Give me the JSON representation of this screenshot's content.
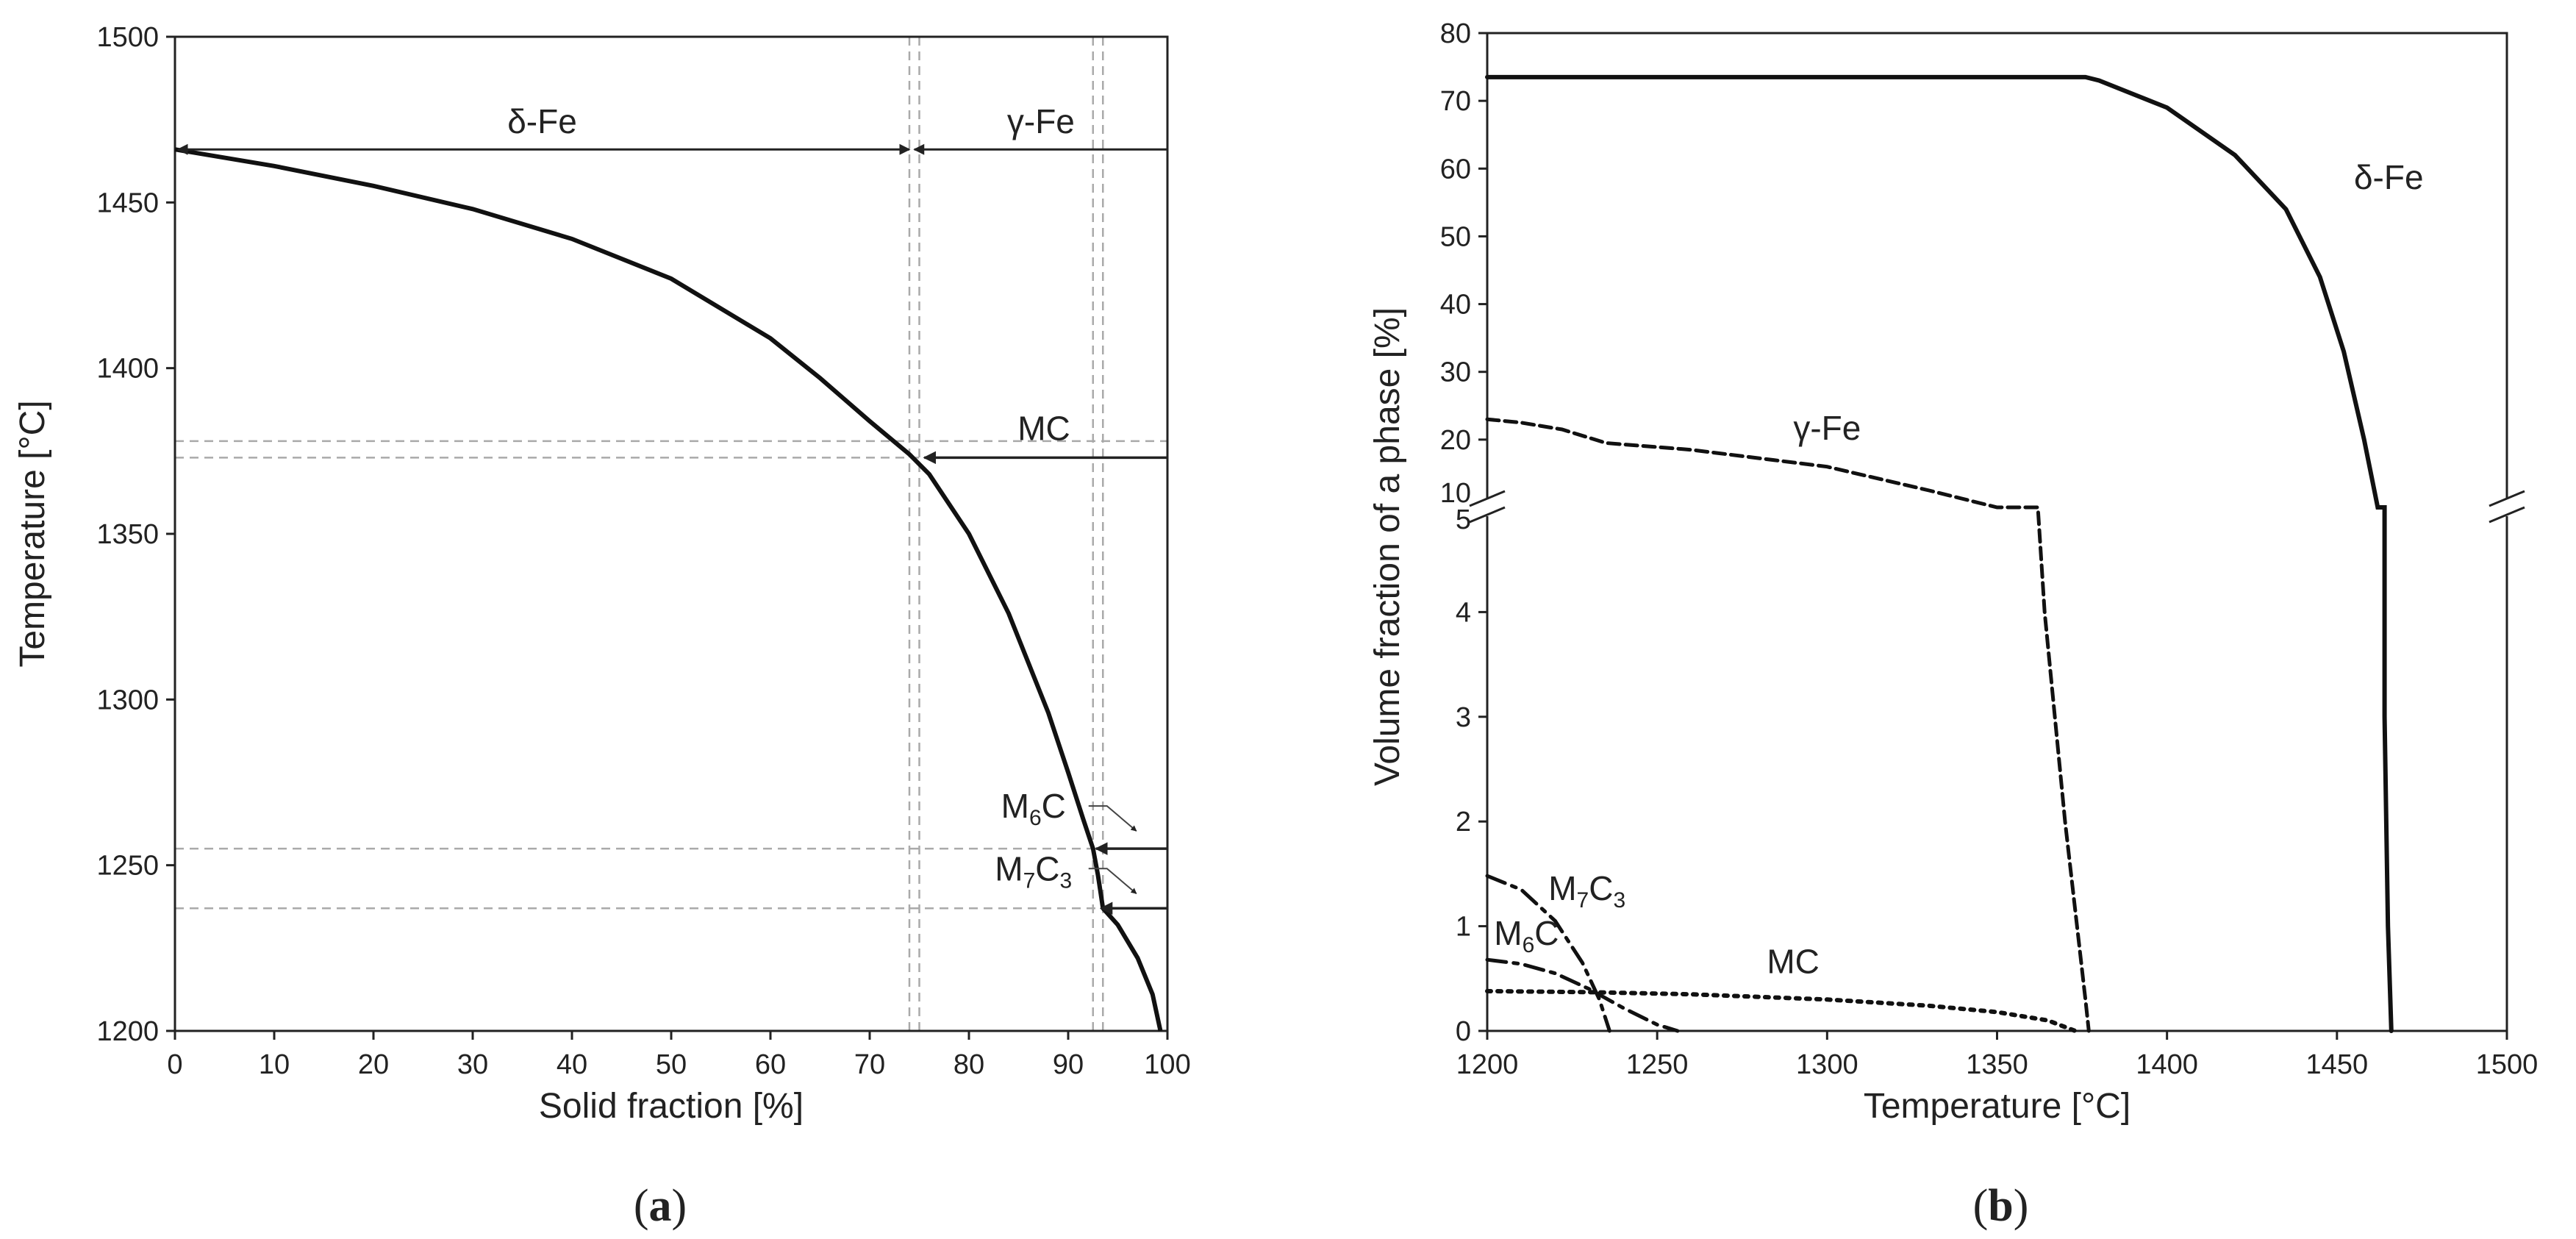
{
  "chart_data": [
    {
      "type": "line",
      "title": "",
      "panel_label": "(a)",
      "panel_label_parts": [
        "(",
        "a",
        ")"
      ],
      "xlabel": "Solid fraction [%]",
      "ylabel": "Temperature [°C]",
      "xlim": [
        0,
        100
      ],
      "ylim": [
        1200,
        1500
      ],
      "xticks": [
        0,
        10,
        20,
        30,
        40,
        50,
        60,
        70,
        80,
        90,
        100
      ],
      "yticks": [
        1200,
        1250,
        1300,
        1350,
        1400,
        1450,
        1500
      ],
      "curve": {
        "name": "solidification curve",
        "x": [
          0,
          10,
          20,
          30,
          40,
          50,
          60,
          65,
          70,
          74,
          76,
          80,
          84,
          88,
          90,
          91.5,
          92.5,
          93,
          93.5,
          95,
          97,
          98.5,
          99.3
        ],
        "y": [
          1466,
          1461,
          1455,
          1448,
          1439,
          1427,
          1409,
          1397,
          1384,
          1374,
          1368,
          1350,
          1326,
          1296,
          1278,
          1264,
          1255,
          1247,
          1237,
          1232,
          1222,
          1211,
          1200
        ]
      },
      "ranges": [
        {
          "label": "δ-Fe",
          "from": 0,
          "to": 74,
          "y": 1466
        },
        {
          "label": "γ-Fe",
          "from": 74.5,
          "to": 100,
          "y": 1466
        }
      ],
      "phase_arrows": [
        {
          "label": "MC",
          "from": 100,
          "to": 75.5,
          "y": 1373
        },
        {
          "label": "M6C",
          "base": "M",
          "sub1": "6",
          "mid": "C",
          "sub2": "",
          "from": 100,
          "to": 92.8,
          "y": 1255
        },
        {
          "label": "M7C3",
          "base": "M",
          "sub1": "7",
          "mid": "C",
          "sub2": "3",
          "from": 100,
          "to": 93.3,
          "y": 1237
        }
      ],
      "guide_lines": {
        "vertical": [
          74,
          75,
          92.5,
          93.5
        ],
        "horizontal": [
          1378,
          1373,
          1255,
          1237
        ]
      }
    },
    {
      "type": "line",
      "title": "",
      "panel_label": "(b)",
      "panel_label_parts": [
        "(",
        "b",
        ")"
      ],
      "xlabel": "Temperature [°C]",
      "ylabel": "Volume fraction of a phase [%]",
      "xlim": [
        1200,
        1500
      ],
      "xticks": [
        1200,
        1250,
        1300,
        1350,
        1400,
        1450,
        1500
      ],
      "y_axis_broken": true,
      "ylim_lower": [
        0,
        5
      ],
      "ylim_upper": [
        10,
        80
      ],
      "yticks_lower": [
        0,
        1,
        2,
        3,
        4,
        5
      ],
      "yticks_upper": [
        10,
        20,
        30,
        40,
        50,
        60,
        70,
        80
      ],
      "series": [
        {
          "name": "δ-Fe",
          "style": "solid",
          "x": [
            1200,
            1376,
            1380,
            1400,
            1420,
            1435,
            1445,
            1452,
            1458,
            1462,
            1464,
            1464,
            1465,
            1466
          ],
          "y": [
            73.5,
            73.5,
            73,
            69,
            62,
            54,
            44,
            33,
            20,
            9,
            5,
            3,
            1,
            0
          ]
        },
        {
          "name": "γ-Fe",
          "style": "dashed",
          "x": [
            1200,
            1210,
            1222,
            1235,
            1260,
            1300,
            1330,
            1350,
            1362,
            1364,
            1370,
            1376,
            1377
          ],
          "y": [
            23,
            22.5,
            21.5,
            19.5,
            18.5,
            16,
            12.5,
            8,
            5,
            4,
            2,
            0.3,
            0
          ]
        },
        {
          "name": "MC",
          "style": "dotted",
          "x": [
            1200,
            1230,
            1260,
            1300,
            1330,
            1350,
            1365,
            1373
          ],
          "y": [
            0.38,
            0.37,
            0.35,
            0.3,
            0.24,
            0.18,
            0.1,
            0
          ]
        },
        {
          "name": "M6C",
          "label_base": "M",
          "label_sub": "6",
          "label_after": "C",
          "label_sub2": "",
          "style": "dash-dot",
          "x": [
            1200,
            1210,
            1220,
            1230,
            1240,
            1250,
            1256
          ],
          "y": [
            0.68,
            0.64,
            0.55,
            0.4,
            0.22,
            0.06,
            0
          ]
        },
        {
          "name": "M7C3",
          "label_base": "M",
          "label_sub": "7",
          "label_after": "C",
          "label_sub2": "3",
          "style": "dash-dot",
          "x": [
            1200,
            1210,
            1220,
            1228,
            1233,
            1236
          ],
          "y": [
            1.48,
            1.35,
            1.05,
            0.65,
            0.3,
            0
          ]
        }
      ]
    }
  ]
}
